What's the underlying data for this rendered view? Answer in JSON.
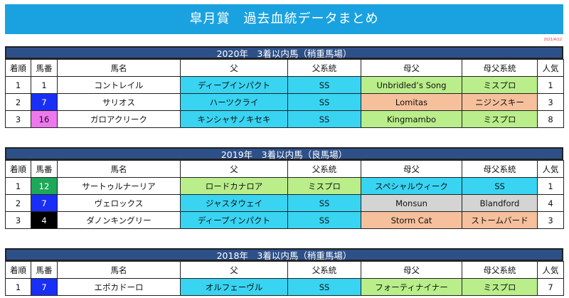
{
  "title": "皐月賞　過去血統データまとめ",
  "date": "2021/4/12",
  "headers": [
    "着順",
    "馬番",
    "馬名",
    "父",
    "父系統",
    "母父",
    "母父系統",
    "人気"
  ],
  "sections": [
    {
      "heading": "2020年　3着以内馬（稍重馬場）",
      "rows": [
        {
          "rank": "1",
          "num": "1",
          "horse": "コントレイル",
          "sire": "ディープインパクト",
          "sire_line": "SS",
          "bms": "Unbridled’s Song",
          "bms_line": "ミスプロ",
          "pop": "1"
        },
        {
          "rank": "2",
          "num": "7",
          "horse": "サリオス",
          "sire": "ハーツクライ",
          "sire_line": "SS",
          "bms": "Lomitas",
          "bms_line": "ニジンスキー",
          "pop": "3"
        },
        {
          "rank": "3",
          "num": "16",
          "horse": "ガロアクリーク",
          "sire": "キンシャサノキセキ",
          "sire_line": "SS",
          "bms": "Kingmambo",
          "bms_line": "ミスプロ",
          "pop": "8"
        }
      ]
    },
    {
      "heading": "2019年　3着以内馬（良馬場）",
      "rows": [
        {
          "rank": "1",
          "num": "12",
          "horse": "サートゥルナーリア",
          "sire": "ロードカナロア",
          "sire_line": "ミスプロ",
          "bms": "スペシャルウィーク",
          "bms_line": "SS",
          "pop": "1"
        },
        {
          "rank": "2",
          "num": "7",
          "horse": "ヴェロックス",
          "sire": "ジャスタウェイ",
          "sire_line": "SS",
          "bms": "Monsun",
          "bms_line": "Blandford",
          "pop": "4"
        },
        {
          "rank": "3",
          "num": "4",
          "horse": "ダノンキングリー",
          "sire": "ディープインパクト",
          "sire_line": "SS",
          "bms": "Storm Cat",
          "bms_line": "ストームバード",
          "pop": "3"
        }
      ]
    },
    {
      "heading": "2018年　3着以内馬（稍重馬場）",
      "rows": [
        {
          "rank": "1",
          "num": "7",
          "horse": "エポカドーロ",
          "sire": "オルフェーヴル",
          "sire_line": "SS",
          "bms": "フォーティナイナー",
          "bms_line": "ミスプロ",
          "pop": "7"
        }
      ]
    }
  ],
  "colors": {
    "title_bg": "#1aa2e0",
    "heading_bg": "#2d5089",
    "SS_sky": "#38d4f2",
    "mispro_green": "#b9ee8a",
    "other_salmon": "#f6c09c",
    "other_grey": "#d4d4d4",
    "gate_blue": "#1a2ff5",
    "gate_pink": "#ee77ee",
    "gate_green": "#1ea85a",
    "gate_black": "#000000"
  }
}
